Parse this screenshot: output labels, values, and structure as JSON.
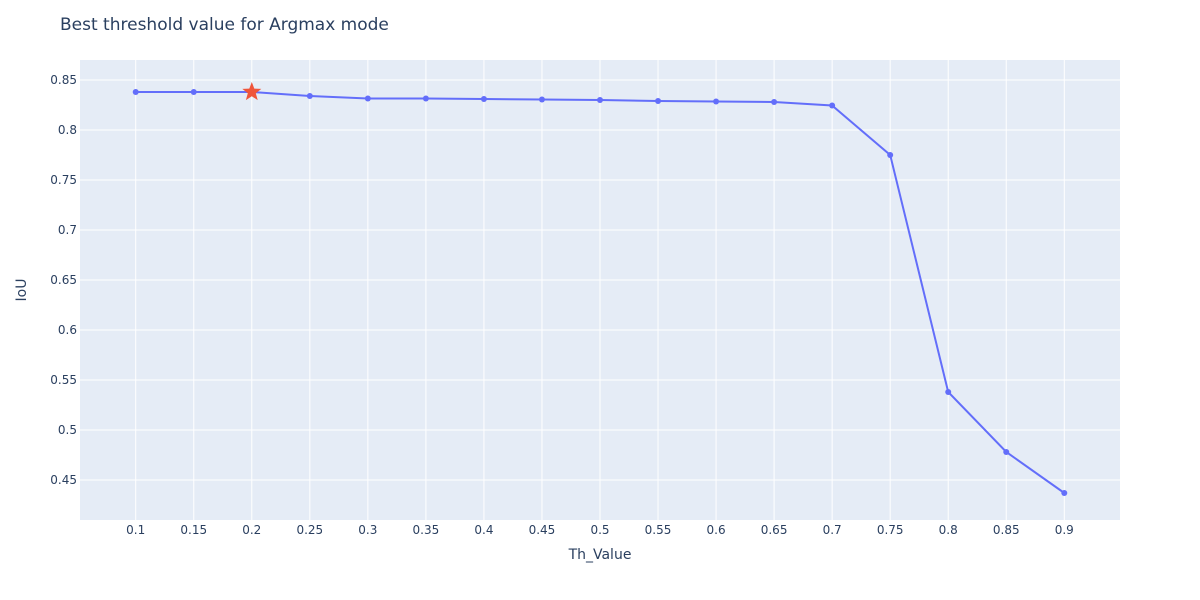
{
  "chart_data": {
    "type": "line",
    "title": "Best threshold value for Argmax mode",
    "xlabel": "Th_Value",
    "ylabel": "IoU",
    "x": [
      0.1,
      0.15,
      0.2,
      0.25,
      0.3,
      0.35,
      0.4,
      0.45,
      0.5,
      0.55,
      0.6,
      0.65,
      0.7,
      0.75,
      0.8,
      0.85,
      0.9
    ],
    "x_tick_labels": [
      "0.1",
      "0.15",
      "0.2",
      "0.25",
      "0.3",
      "0.35",
      "0.4",
      "0.45",
      "0.5",
      "0.55",
      "0.6",
      "0.65",
      "0.7",
      "0.75",
      "0.8",
      "0.85",
      "0.9"
    ],
    "xlim": [
      0.052,
      0.948
    ],
    "y_ticks": [
      0.45,
      0.5,
      0.55,
      0.6,
      0.65,
      0.7,
      0.75,
      0.8,
      0.85
    ],
    "y_tick_labels": [
      "0.45",
      "0.5",
      "0.55",
      "0.6",
      "0.65",
      "0.7",
      "0.75",
      "0.8",
      "0.85"
    ],
    "ylim": [
      0.41,
      0.87
    ],
    "grid": true,
    "series": [
      {
        "values": [
          0.838,
          0.838,
          0.838,
          0.834,
          0.8315,
          0.8315,
          0.831,
          0.8305,
          0.83,
          0.829,
          0.8285,
          0.828,
          0.8245,
          0.775,
          0.538,
          0.478,
          0.437
        ],
        "color": "#636efa",
        "marker": "circle"
      }
    ],
    "highlight": {
      "x": 0.2,
      "y": 0.838,
      "marker": "star",
      "color": "#ef553b"
    },
    "background_color": "#e5ecf6",
    "grid_color": "#ffffff"
  }
}
